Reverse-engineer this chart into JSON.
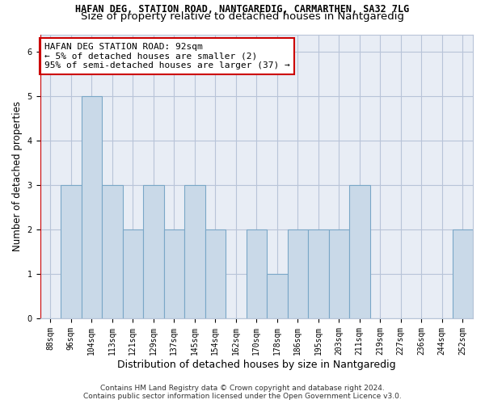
{
  "title_line1": "HAFAN DEG, STATION ROAD, NANTGAREDIG, CARMARTHEN, SA32 7LG",
  "title_line2": "Size of property relative to detached houses in Nantgaredig",
  "xlabel": "Distribution of detached houses by size in Nantgaredig",
  "ylabel": "Number of detached properties",
  "categories": [
    "88sqm",
    "96sqm",
    "104sqm",
    "113sqm",
    "121sqm",
    "129sqm",
    "137sqm",
    "145sqm",
    "154sqm",
    "162sqm",
    "170sqm",
    "178sqm",
    "186sqm",
    "195sqm",
    "203sqm",
    "211sqm",
    "219sqm",
    "227sqm",
    "236sqm",
    "244sqm",
    "252sqm"
  ],
  "values": [
    0,
    3,
    5,
    3,
    2,
    3,
    2,
    3,
    2,
    0,
    2,
    1,
    2,
    2,
    2,
    3,
    0,
    0,
    0,
    0,
    2
  ],
  "bar_color": "#c9d9e8",
  "bar_edge_color": "#7aa7c7",
  "bar_edge_width": 0.8,
  "grid_color": "#b8c4d8",
  "bg_color": "#e8edf5",
  "property_line_color": "#cc0000",
  "property_line_x": -0.5,
  "annotation_text": "HAFAN DEG STATION ROAD: 92sqm\n← 5% of detached houses are smaller (2)\n95% of semi-detached houses are larger (37) →",
  "annotation_box_color": "#ffffff",
  "annotation_box_edge": "#cc0000",
  "ylim": [
    0,
    6.4
  ],
  "yticks": [
    0,
    1,
    2,
    3,
    4,
    5,
    6
  ],
  "footer_line1": "Contains HM Land Registry data © Crown copyright and database right 2024.",
  "footer_line2": "Contains public sector information licensed under the Open Government Licence v3.0.",
  "title1_fontsize": 8.5,
  "title2_fontsize": 9.5,
  "xlabel_fontsize": 9,
  "ylabel_fontsize": 8.5,
  "tick_fontsize": 7,
  "annotation_fontsize": 8,
  "footer_fontsize": 6.5
}
